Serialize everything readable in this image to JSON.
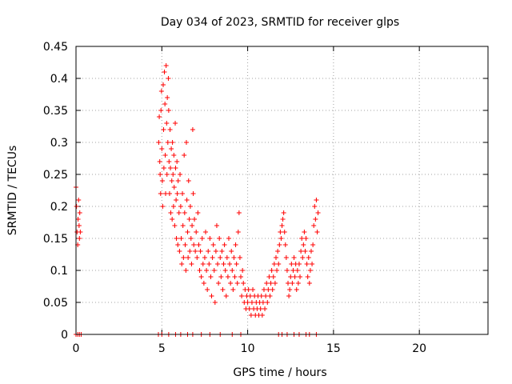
{
  "chart_data": {
    "type": "scatter",
    "title": "Day 034 of 2023, SRMTID for receiver glps",
    "xlabel": "GPS time / hours",
    "ylabel": "SRMTID / TECUs",
    "xlim": [
      0,
      24
    ],
    "ylim": [
      0,
      0.45
    ],
    "x_ticks": [
      0,
      5,
      10,
      15,
      20
    ],
    "y_ticks": [
      0,
      0.05,
      0.1,
      0.15,
      0.2,
      0.25,
      0.3,
      0.35,
      0.4,
      0.45
    ],
    "grid": true,
    "marker": "+",
    "color": "#ff0000",
    "series": [
      {
        "name": "SRMTID",
        "points": [
          [
            0.0,
            0.23
          ],
          [
            0.03,
            0.2
          ],
          [
            0.06,
            0.16
          ],
          [
            0.1,
            0.14
          ],
          [
            0.12,
            0.18
          ],
          [
            0.15,
            0.21
          ],
          [
            0.18,
            0.17
          ],
          [
            0.2,
            0.15
          ],
          [
            0.22,
            0.19
          ],
          [
            0.25,
            0.16
          ],
          [
            4.82,
            0.3
          ],
          [
            4.85,
            0.34
          ],
          [
            4.88,
            0.27
          ],
          [
            4.9,
            0.25
          ],
          [
            4.93,
            0.22
          ],
          [
            4.95,
            0.35
          ],
          [
            4.98,
            0.38
          ],
          [
            5.0,
            0.29
          ],
          [
            5.03,
            0.24
          ],
          [
            5.05,
            0.2
          ],
          [
            5.08,
            0.39
          ],
          [
            5.1,
            0.32
          ],
          [
            5.12,
            0.26
          ],
          [
            5.15,
            0.41
          ],
          [
            5.18,
            0.36
          ],
          [
            5.2,
            0.28
          ],
          [
            5.22,
            0.22
          ],
          [
            5.25,
            0.42
          ],
          [
            5.28,
            0.33
          ],
          [
            5.3,
            0.25
          ],
          [
            5.32,
            0.37
          ],
          [
            5.35,
            0.3
          ],
          [
            5.38,
            0.4
          ],
          [
            5.4,
            0.35
          ],
          [
            5.42,
            0.27
          ],
          [
            5.45,
            0.22
          ],
          [
            5.48,
            0.32
          ],
          [
            5.5,
            0.26
          ],
          [
            5.52,
            0.19
          ],
          [
            5.55,
            0.29
          ],
          [
            5.58,
            0.24
          ],
          [
            5.6,
            0.18
          ],
          [
            5.62,
            0.3
          ],
          [
            5.65,
            0.25
          ],
          [
            5.68,
            0.2
          ],
          [
            5.7,
            0.28
          ],
          [
            5.72,
            0.23
          ],
          [
            5.75,
            0.17
          ],
          [
            5.78,
            0.33
          ],
          [
            5.8,
            0.26
          ],
          [
            5.83,
            0.21
          ],
          [
            5.85,
            0.15
          ],
          [
            5.88,
            0.27
          ],
          [
            5.9,
            0.22
          ],
          [
            5.93,
            0.14
          ],
          [
            5.95,
            0.24
          ],
          [
            6.0,
            0.19
          ],
          [
            6.03,
            0.13
          ],
          [
            6.06,
            0.25
          ],
          [
            6.1,
            0.2
          ],
          [
            6.13,
            0.15
          ],
          [
            6.16,
            0.11
          ],
          [
            6.2,
            0.22
          ],
          [
            6.23,
            0.17
          ],
          [
            6.26,
            0.12
          ],
          [
            6.3,
            0.28
          ],
          [
            6.33,
            0.19
          ],
          [
            6.36,
            0.14
          ],
          [
            6.4,
            0.1
          ],
          [
            6.43,
            0.3
          ],
          [
            6.46,
            0.21
          ],
          [
            6.5,
            0.16
          ],
          [
            6.53,
            0.12
          ],
          [
            6.56,
            0.24
          ],
          [
            6.6,
            0.18
          ],
          [
            6.63,
            0.13
          ],
          [
            6.66,
            0.2
          ],
          [
            6.7,
            0.15
          ],
          [
            6.73,
            0.11
          ],
          [
            6.76,
            0.17
          ],
          [
            6.8,
            0.32
          ],
          [
            6.83,
            0.22
          ],
          [
            6.86,
            0.14
          ],
          [
            6.9,
            0.18
          ],
          [
            6.95,
            0.13
          ],
          [
            7.0,
            0.16
          ],
          [
            7.05,
            0.12
          ],
          [
            7.1,
            0.19
          ],
          [
            7.15,
            0.14
          ],
          [
            7.2,
            0.1
          ],
          [
            7.25,
            0.13
          ],
          [
            7.3,
            0.09
          ],
          [
            7.35,
            0.15
          ],
          [
            7.4,
            0.11
          ],
          [
            7.45,
            0.08
          ],
          [
            7.5,
            0.12
          ],
          [
            7.55,
            0.16
          ],
          [
            7.6,
            0.1
          ],
          [
            7.65,
            0.07
          ],
          [
            7.7,
            0.13
          ],
          [
            7.75,
            0.11
          ],
          [
            7.8,
            0.15
          ],
          [
            7.85,
            0.09
          ],
          [
            7.9,
            0.06
          ],
          [
            7.95,
            0.12
          ],
          [
            8.0,
            0.14
          ],
          [
            8.05,
            0.1
          ],
          [
            8.1,
            0.05
          ],
          [
            8.15,
            0.13
          ],
          [
            8.2,
            0.17
          ],
          [
            8.25,
            0.11
          ],
          [
            8.3,
            0.08
          ],
          [
            8.35,
            0.15
          ],
          [
            8.4,
            0.12
          ],
          [
            8.45,
            0.09
          ],
          [
            8.5,
            0.13
          ],
          [
            8.55,
            0.07
          ],
          [
            8.6,
            0.11
          ],
          [
            8.65,
            0.14
          ],
          [
            8.7,
            0.1
          ],
          [
            8.75,
            0.06
          ],
          [
            8.8,
            0.12
          ],
          [
            8.85,
            0.09
          ],
          [
            8.9,
            0.15
          ],
          [
            8.95,
            0.11
          ],
          [
            9.0,
            0.08
          ],
          [
            9.05,
            0.13
          ],
          [
            9.1,
            0.1
          ],
          [
            9.15,
            0.07
          ],
          [
            9.2,
            0.12
          ],
          [
            9.25,
            0.09
          ],
          [
            9.3,
            0.14
          ],
          [
            9.35,
            0.11
          ],
          [
            9.4,
            0.08
          ],
          [
            9.45,
            0.16
          ],
          [
            9.5,
            0.19
          ],
          [
            9.55,
            0.12
          ],
          [
            9.6,
            0.09
          ],
          [
            9.65,
            0.06
          ],
          [
            9.7,
            0.1
          ],
          [
            9.75,
            0.08
          ],
          [
            9.8,
            0.05
          ],
          [
            9.85,
            0.07
          ],
          [
            9.9,
            0.04
          ],
          [
            9.95,
            0.06
          ],
          [
            10.0,
            0.05
          ],
          [
            10.05,
            0.07
          ],
          [
            10.1,
            0.04
          ],
          [
            10.15,
            0.06
          ],
          [
            10.2,
            0.03
          ],
          [
            10.25,
            0.05
          ],
          [
            10.3,
            0.07
          ],
          [
            10.35,
            0.04
          ],
          [
            10.4,
            0.06
          ],
          [
            10.45,
            0.03
          ],
          [
            10.5,
            0.05
          ],
          [
            10.55,
            0.04
          ],
          [
            10.6,
            0.06
          ],
          [
            10.65,
            0.03
          ],
          [
            10.7,
            0.05
          ],
          [
            10.75,
            0.04
          ],
          [
            10.8,
            0.06
          ],
          [
            10.85,
            0.03
          ],
          [
            10.9,
            0.05
          ],
          [
            10.95,
            0.07
          ],
          [
            11.0,
            0.04
          ],
          [
            11.05,
            0.06
          ],
          [
            11.1,
            0.08
          ],
          [
            11.15,
            0.05
          ],
          [
            11.2,
            0.07
          ],
          [
            11.25,
            0.09
          ],
          [
            11.3,
            0.06
          ],
          [
            11.35,
            0.08
          ],
          [
            11.4,
            0.1
          ],
          [
            11.45,
            0.07
          ],
          [
            11.5,
            0.09
          ],
          [
            11.55,
            0.11
          ],
          [
            11.6,
            0.08
          ],
          [
            11.65,
            0.12
          ],
          [
            11.7,
            0.1
          ],
          [
            11.75,
            0.13
          ],
          [
            11.8,
            0.11
          ],
          [
            11.85,
            0.14
          ],
          [
            11.9,
            0.16
          ],
          [
            11.95,
            0.15
          ],
          [
            12.0,
            0.17
          ],
          [
            12.05,
            0.18
          ],
          [
            12.1,
            0.19
          ],
          [
            12.15,
            0.16
          ],
          [
            12.2,
            0.14
          ],
          [
            12.25,
            0.12
          ],
          [
            12.3,
            0.1
          ],
          [
            12.35,
            0.08
          ],
          [
            12.4,
            0.06
          ],
          [
            12.45,
            0.07
          ],
          [
            12.5,
            0.09
          ],
          [
            12.55,
            0.11
          ],
          [
            12.6,
            0.08
          ],
          [
            12.65,
            0.1
          ],
          [
            12.7,
            0.12
          ],
          [
            12.75,
            0.09
          ],
          [
            12.8,
            0.11
          ],
          [
            12.85,
            0.07
          ],
          [
            12.9,
            0.1
          ],
          [
            12.95,
            0.08
          ],
          [
            13.0,
            0.11
          ],
          [
            13.05,
            0.09
          ],
          [
            13.1,
            0.13
          ],
          [
            13.15,
            0.15
          ],
          [
            13.2,
            0.12
          ],
          [
            13.25,
            0.14
          ],
          [
            13.3,
            0.16
          ],
          [
            13.35,
            0.13
          ],
          [
            13.4,
            0.15
          ],
          [
            13.45,
            0.11
          ],
          [
            13.5,
            0.09
          ],
          [
            13.55,
            0.12
          ],
          [
            13.6,
            0.08
          ],
          [
            13.65,
            0.1
          ],
          [
            13.7,
            0.13
          ],
          [
            13.75,
            0.11
          ],
          [
            13.8,
            0.14
          ],
          [
            13.85,
            0.17
          ],
          [
            13.9,
            0.2
          ],
          [
            13.95,
            0.18
          ],
          [
            14.0,
            0.21
          ],
          [
            14.05,
            0.16
          ],
          [
            14.1,
            0.19
          ],
          [
            0.0,
            0.0
          ],
          [
            0.1,
            0.0
          ],
          [
            0.2,
            0.0
          ],
          [
            0.3,
            0.0
          ],
          [
            4.8,
            0.0
          ],
          [
            5.0,
            0.0
          ],
          [
            5.4,
            0.0
          ],
          [
            5.8,
            0.0
          ],
          [
            6.1,
            0.0
          ],
          [
            6.5,
            0.0
          ],
          [
            6.8,
            0.0
          ],
          [
            7.3,
            0.0
          ],
          [
            7.8,
            0.0
          ],
          [
            8.4,
            0.0
          ],
          [
            9.1,
            0.0
          ],
          [
            9.6,
            0.0
          ],
          [
            11.8,
            0.0
          ],
          [
            12.0,
            0.0
          ],
          [
            12.3,
            0.0
          ],
          [
            12.7,
            0.0
          ],
          [
            13.0,
            0.0
          ],
          [
            13.4,
            0.0
          ],
          [
            13.6,
            0.0
          ],
          [
            14.0,
            0.0
          ]
        ]
      }
    ]
  }
}
